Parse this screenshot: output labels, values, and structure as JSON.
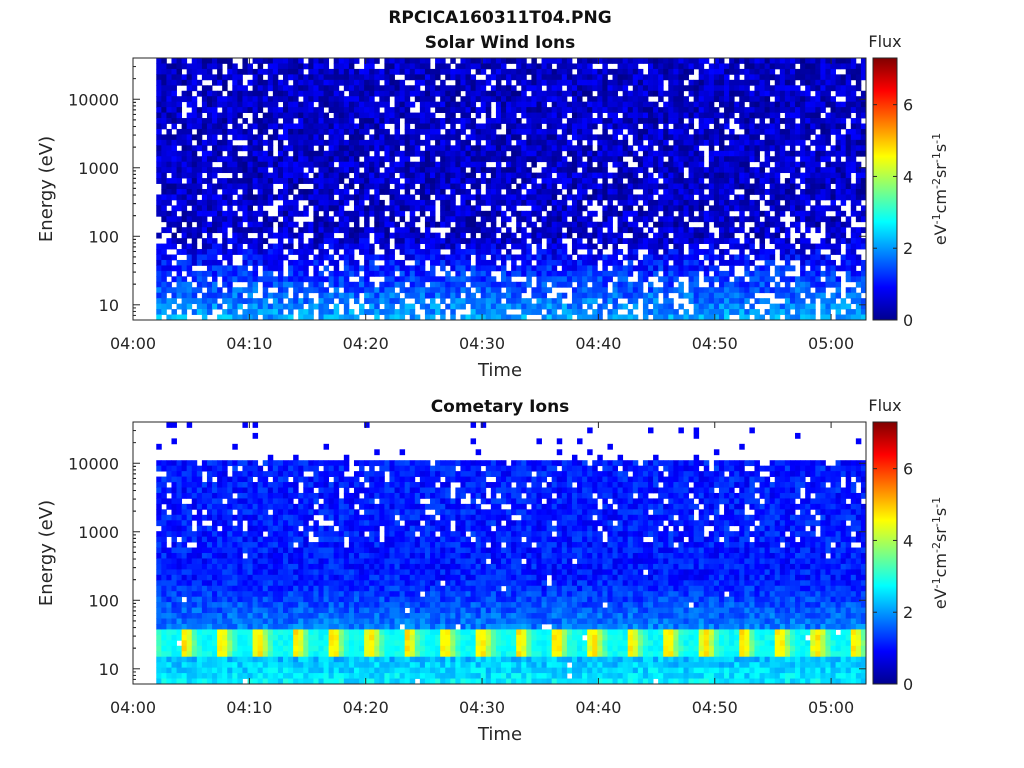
{
  "figure_title": "RPCICA160311T04.PNG",
  "chart_data": [
    {
      "type": "heatmap",
      "title": "Solar Wind Ions",
      "xlabel": "Time",
      "ylabel": "Energy (eV)",
      "y_scale": "log",
      "ylim": [
        6,
        40000
      ],
      "xlim": [
        "04:00",
        "05:03"
      ],
      "x_tick_labels": [
        "04:00",
        "04:10",
        "04:20",
        "04:30",
        "04:40",
        "04:50",
        "05:00"
      ],
      "y_tick_labels": [
        "10",
        "100",
        "1000",
        "10000"
      ],
      "data_start": "04:02",
      "colorbar": {
        "title": "Flux",
        "unit": "eV-1cm-2sr-1s-1",
        "range": [
          0,
          7.3
        ],
        "ticks": [
          "0",
          "2",
          "4",
          "6"
        ]
      },
      "grid": false
    },
    {
      "type": "heatmap",
      "title": "Cometary Ions",
      "xlabel": "Time",
      "ylabel": "Energy (eV)",
      "y_scale": "log",
      "ylim": [
        6,
        40000
      ],
      "xlim": [
        "04:00",
        "05:03"
      ],
      "x_tick_labels": [
        "04:00",
        "04:10",
        "04:20",
        "04:30",
        "04:40",
        "04:50",
        "05:00"
      ],
      "y_tick_labels": [
        "10",
        "100",
        "1000",
        "10000"
      ],
      "data_start": "04:02",
      "colorbar": {
        "title": "Flux",
        "unit": "eV-1cm-2sr-1s-1",
        "range": [
          0,
          7.3
        ],
        "ticks": [
          "0",
          "2",
          "4",
          "6"
        ]
      },
      "grid": false
    }
  ]
}
